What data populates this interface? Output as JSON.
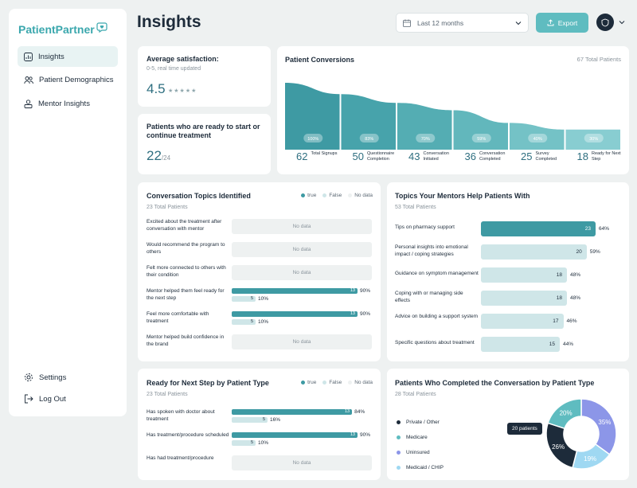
{
  "app": {
    "brand": "PatientPartner",
    "page_title": "Insights"
  },
  "sidebar": {
    "items": [
      {
        "label": "Insights",
        "icon": "chart-icon"
      },
      {
        "label": "Patient Demographics",
        "icon": "users-icon"
      },
      {
        "label": "Mentor Insights",
        "icon": "mentor-icon"
      }
    ],
    "bottom": [
      {
        "label": "Settings",
        "icon": "gear-icon"
      },
      {
        "label": "Log Out",
        "icon": "logout-icon"
      }
    ]
  },
  "header": {
    "date_range": "Last 12 months",
    "export_label": "Export"
  },
  "satisfaction": {
    "title": "Average satisfaction:",
    "subtitle": "0-5, real time updated",
    "value": "4.5",
    "stars": "★★★★★"
  },
  "ready": {
    "title": "Patients who are ready to start or continue treatment",
    "value": "22",
    "total": "/24"
  },
  "conversions": {
    "title": "Patient Conversions",
    "total": "67 Total Patients",
    "stages": [
      {
        "count": "62",
        "label": "Total Signups",
        "pct": "100%",
        "percent": 100
      },
      {
        "count": "50",
        "label": "Questionnaire Completion",
        "pct": "83%",
        "percent": 83
      },
      {
        "count": "43",
        "label": "Conversation Initiated",
        "pct": "70%",
        "percent": 70
      },
      {
        "count": "36",
        "label": "Conversation Completed",
        "pct": "59%",
        "percent": 59
      },
      {
        "count": "25",
        "label": "Survey Completed",
        "pct": "40%",
        "percent": 40
      },
      {
        "count": "18",
        "label": "Ready for Next Step",
        "pct": "30%",
        "percent": 30
      }
    ]
  },
  "legend": {
    "true": "true",
    "false": "False",
    "nodata": "No data"
  },
  "topics": {
    "title": "Conversation Topics Identified",
    "total": "23 Total Patients",
    "rows": [
      {
        "label": "Excited about the treatment after conversation with mentor",
        "nodata": "No data"
      },
      {
        "label": "Would recommend the program to others",
        "nodata": "No data"
      },
      {
        "label": "Felt more connected to others with their condition",
        "nodata": "No data"
      },
      {
        "label": "Mentor helped them feel ready for the next step",
        "true_count": "13",
        "true_pct": "90%",
        "true_percent": 90,
        "false_count": "5",
        "false_pct": "10%",
        "false_percent": 10
      },
      {
        "label": "Feel more comfortable with treatment",
        "true_count": "13",
        "true_pct": "90%",
        "true_percent": 90,
        "false_count": "5",
        "false_pct": "10%",
        "false_percent": 10
      },
      {
        "label": "Mentor helped build confidence in the brand",
        "nodata": "No data"
      }
    ]
  },
  "mentor_topics": {
    "title": "Topics Your Mentors Help Patients With",
    "total": "53 Total Patients",
    "rows": [
      {
        "label": "Tips on pharmacy support",
        "count": "23",
        "pct": "64%",
        "percent": 64
      },
      {
        "label": "Personal insights into emotional impact / coping strategies",
        "count": "20",
        "pct": "59%",
        "percent": 59
      },
      {
        "label": "Guidance on symptom management",
        "count": "18",
        "pct": "48%",
        "percent": 48
      },
      {
        "label": "Coping with or managing side effects",
        "count": "18",
        "pct": "48%",
        "percent": 48
      },
      {
        "label": "Advice on building a support system",
        "count": "17",
        "pct": "46%",
        "percent": 46
      },
      {
        "label": "Specific questions about treatment",
        "count": "15",
        "pct": "44%",
        "percent": 44
      }
    ]
  },
  "next_step": {
    "title": "Ready for Next Step by Patient Type",
    "total": "23 Total Patients",
    "rows": [
      {
        "label": "Has spoken with doctor about treatment",
        "true_count": "13",
        "true_pct": "84%",
        "true_percent": 84,
        "false_count": "5",
        "false_pct": "16%",
        "false_percent": 16
      },
      {
        "label": "Has treatment/procedure scheduled",
        "true_count": "13",
        "true_pct": "90%",
        "true_percent": 90,
        "false_count": "5",
        "false_pct": "10%",
        "false_percent": 10
      },
      {
        "label": "Has had treatment/procedure",
        "nodata": "No data"
      }
    ]
  },
  "patient_type": {
    "title": "Patients Who Completed the Conversation  by Patient Type",
    "total": "28 Total Patients",
    "tooltip": "20 patients",
    "legend": [
      {
        "label": "Private / Other",
        "color": "#1d2b3a"
      },
      {
        "label": "Medicare",
        "color": "#5fbcc0"
      },
      {
        "label": "Uninsured",
        "color": "#8c96e8"
      },
      {
        "label": "Medicaid / CHIP",
        "color": "#9fd8f2"
      }
    ]
  },
  "chart_data": {
    "type": "pie",
    "title": "Patients Who Completed the Conversation  by Patient Type",
    "categories": [
      "Uninsured",
      "Medicaid / CHIP",
      "Private / Other",
      "Medicare"
    ],
    "values": [
      35,
      19,
      26,
      20
    ],
    "labels": [
      "35%",
      "19%",
      "26%",
      "20%"
    ],
    "colors": [
      "#8c96e8",
      "#9fd8f2",
      "#1d2b3a",
      "#5fbcc0"
    ]
  }
}
